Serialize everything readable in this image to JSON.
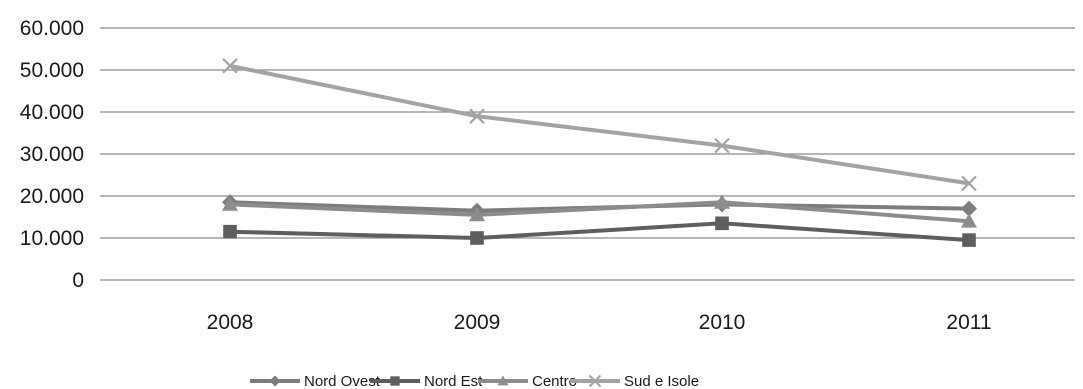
{
  "chart_data": {
    "type": "line",
    "title": "",
    "xlabel": "",
    "ylabel": "",
    "categories": [
      "2008",
      "2009",
      "2010",
      "2011"
    ],
    "ylim": [
      0,
      60000
    ],
    "yticks": [
      0,
      10000,
      20000,
      30000,
      40000,
      50000,
      60000
    ],
    "ytick_labels": [
      "0",
      "10.000",
      "20.000",
      "30.000",
      "40.000",
      "50.000",
      "60.000"
    ],
    "grid": true,
    "legend_position": "bottom",
    "series": [
      {
        "name": "Nord Ovest",
        "values": [
          18500,
          16500,
          18000,
          17000
        ],
        "marker": "diamond",
        "color": "#7d7d7d"
      },
      {
        "name": "Nord Est",
        "values": [
          11500,
          10000,
          13500,
          9500
        ],
        "marker": "square",
        "color": "#5e5e5e"
      },
      {
        "name": "Centro",
        "values": [
          18000,
          15500,
          18500,
          14000
        ],
        "marker": "triangle",
        "color": "#8c8c8c"
      },
      {
        "name": "Sud e Isole",
        "values": [
          51000,
          39000,
          32000,
          23000
        ],
        "marker": "x",
        "color": "#a3a3a3"
      }
    ]
  }
}
